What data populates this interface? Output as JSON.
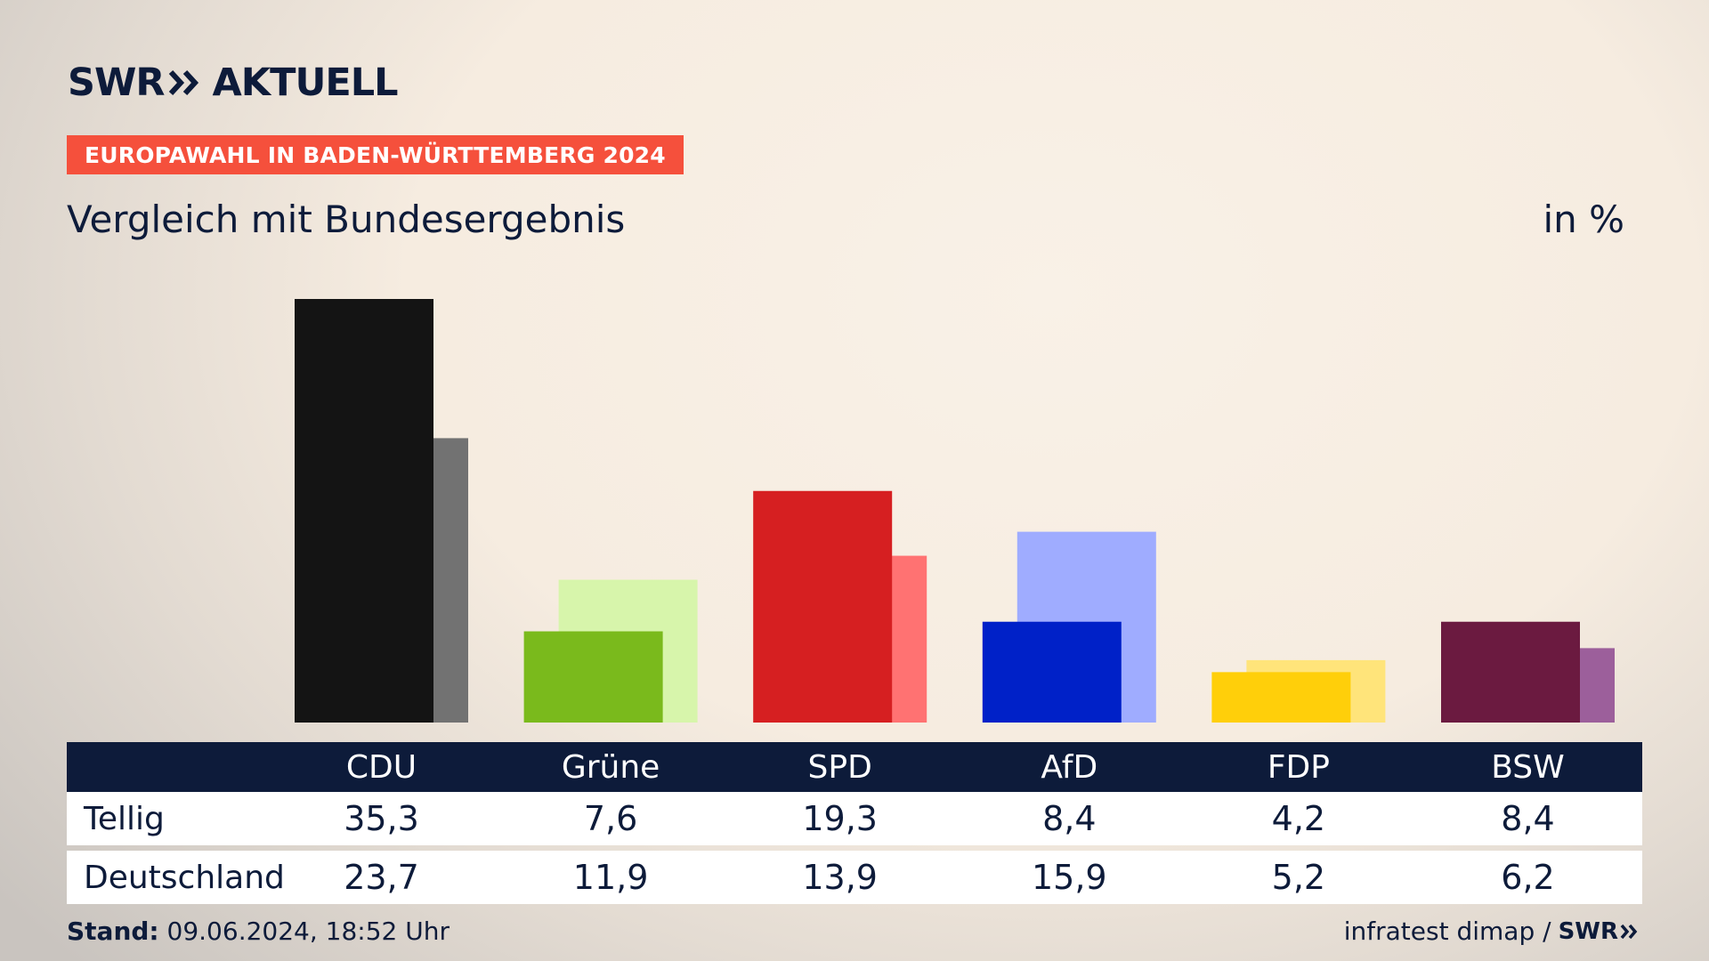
{
  "brand": {
    "name": "SWR",
    "product": "AKTUELL"
  },
  "badge": "EUROPAWAHL IN BADEN-WÜRTTEMBERG 2024",
  "subtitle": "Vergleich mit Bundesergebnis",
  "unit": "in %",
  "chart_data": {
    "type": "bar",
    "categories": [
      "CDU",
      "Grüne",
      "SPD",
      "AfD",
      "FDP",
      "BSW"
    ],
    "series": [
      {
        "name": "Tellig",
        "values": [
          35.3,
          7.6,
          19.3,
          8.4,
          4.2,
          8.4
        ]
      },
      {
        "name": "Deutschland",
        "values": [
          23.7,
          11.9,
          13.9,
          15.9,
          5.2,
          6.2
        ]
      }
    ],
    "ylim": [
      0,
      35.3
    ],
    "grid": false,
    "colors": {
      "CDU": [
        "#141414",
        "#727272"
      ],
      "Grüne": [
        "#7aba1c",
        "#d7f5ab"
      ],
      "SPD": [
        "#d61f21",
        "#ff7272"
      ],
      "AfD": [
        "#0021c8",
        "#9facff"
      ],
      "FDP": [
        "#ffcf0a",
        "#ffe47a"
      ],
      "BSW": [
        "#6b1a40",
        "#9c5f9b"
      ]
    }
  },
  "table": {
    "rows": [
      {
        "label": "Tellig",
        "values": [
          "35,3",
          "7,6",
          "19,3",
          "8,4",
          "4,2",
          "8,4"
        ]
      },
      {
        "label": "Deutschland",
        "values": [
          "23,7",
          "11,9",
          "13,9",
          "15,9",
          "5,2",
          "6,2"
        ]
      }
    ]
  },
  "footer": {
    "stand_label": "Stand:",
    "stand_value": "09.06.2024, 18:52 Uhr",
    "source": "infratest dimap /",
    "source_brand": "SWR"
  }
}
